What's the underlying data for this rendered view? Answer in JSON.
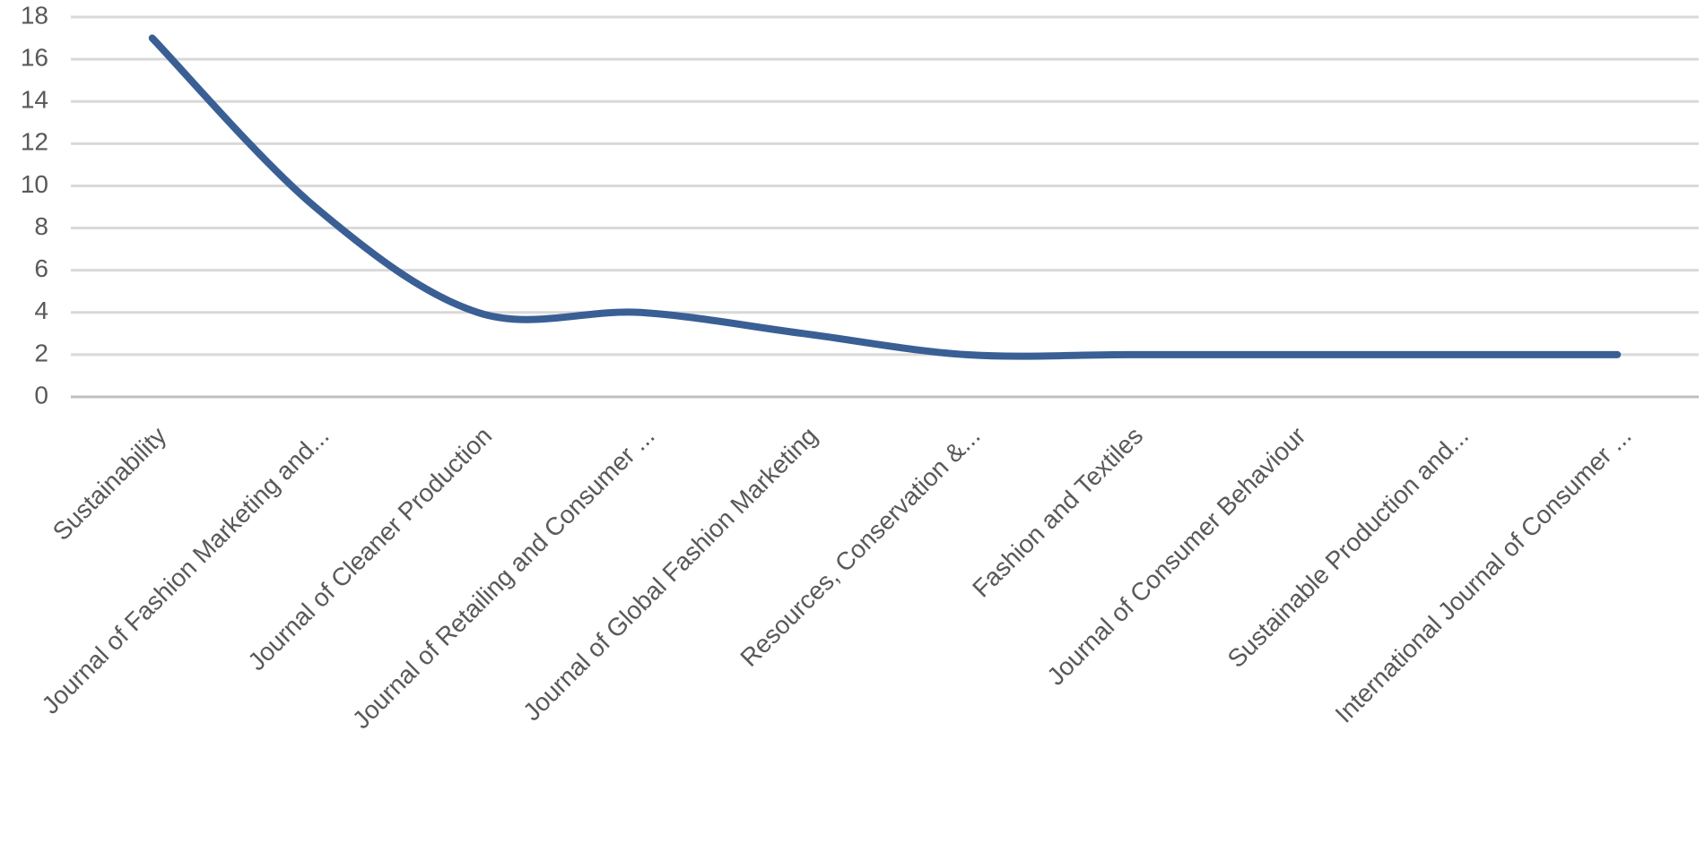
{
  "chart_data": {
    "type": "line",
    "categories": [
      "Sustainability",
      "Journal of Fashion Marketing and...",
      "Journal of Cleaner Production",
      "Journal of Retailing and Consumer ...",
      "Journal of Global Fashion Marketing",
      "Resources, Conservation &...",
      "Fashion and Textiles",
      "Journal of Consumer Behaviour",
      "Sustainable Production and...",
      "International Journal of Consumer ..."
    ],
    "series": [
      {
        "color": "#3a5f95",
        "values": [
          17,
          9,
          4,
          4,
          3,
          2,
          2,
          2,
          2,
          2
        ]
      }
    ],
    "ylim": [
      0,
      18
    ],
    "yticks": [
      0,
      2,
      4,
      6,
      8,
      10,
      12,
      14,
      16,
      18
    ],
    "grid": true,
    "smooth": true
  }
}
